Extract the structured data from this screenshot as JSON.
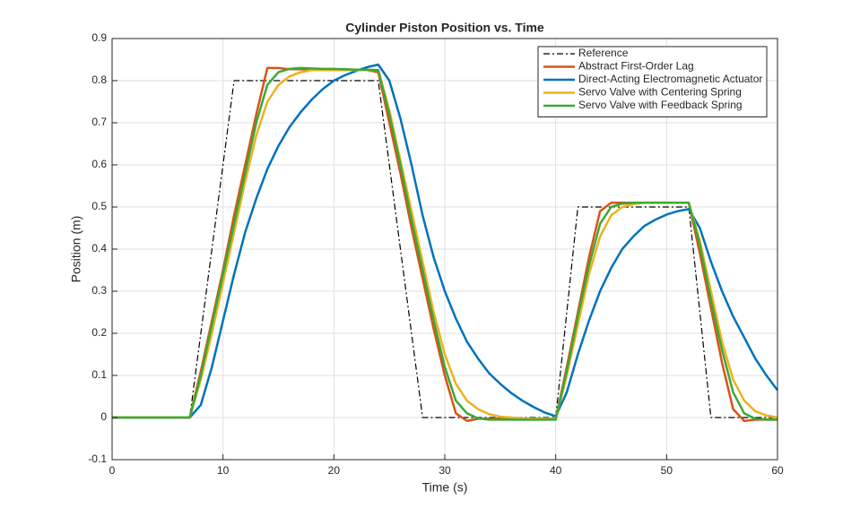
{
  "chart_data": {
    "type": "line",
    "title": "Cylinder Piston Position vs. Time",
    "x_label": "Time (s)",
    "y_label": "Position (m)",
    "x": [
      0,
      1,
      2,
      3,
      4,
      5,
      6,
      7,
      8,
      9,
      10,
      11,
      12,
      13,
      14,
      15,
      16,
      17,
      18,
      19,
      20,
      21,
      22,
      23,
      24,
      25,
      26,
      27,
      28,
      29,
      30,
      31,
      32,
      33,
      34,
      35,
      36,
      37,
      38,
      39,
      40,
      41,
      42,
      43,
      44,
      45,
      46,
      47,
      48,
      49,
      50,
      51,
      52,
      53,
      54,
      55,
      56,
      57,
      58,
      59,
      60
    ],
    "series": [
      {
        "name": "Reference",
        "color": "#000000",
        "linestyle": "dashdot",
        "values": [
          0,
          0,
          0,
          0,
          0,
          0,
          0,
          0,
          0.2,
          0.4,
          0.6,
          0.8,
          0.8,
          0.8,
          0.8,
          0.8,
          0.8,
          0.8,
          0.8,
          0.8,
          0.8,
          0.8,
          0.8,
          0.8,
          0.8,
          0.6,
          0.4,
          0.2,
          0,
          0,
          0,
          0,
          0,
          0,
          0,
          0,
          0,
          0,
          0,
          0,
          0,
          0.25,
          0.5,
          0.5,
          0.5,
          0.5,
          0.5,
          0.5,
          0.5,
          0.5,
          0.5,
          0.5,
          0.5,
          0.25,
          0,
          0,
          0,
          0,
          0,
          0,
          0
        ]
      },
      {
        "name": "Abstract First-Order Lag",
        "color": "#d95319",
        "linestyle": "solid",
        "values": [
          0,
          0,
          0,
          0,
          0,
          0,
          0,
          0,
          0.11,
          0.23,
          0.35,
          0.48,
          0.6,
          0.72,
          0.83,
          0.83,
          0.827,
          0.827,
          0.826,
          0.826,
          0.826,
          0.825,
          0.825,
          0.825,
          0.82,
          0.7,
          0.58,
          0.45,
          0.33,
          0.21,
          0.1,
          0.01,
          -0.008,
          -0.003,
          -0.003,
          -0.003,
          -0.003,
          -0.003,
          -0.003,
          -0.003,
          -0.003,
          0.12,
          0.25,
          0.38,
          0.49,
          0.51,
          0.51,
          0.51,
          0.51,
          0.51,
          0.51,
          0.51,
          0.51,
          0.39,
          0.26,
          0.13,
          0.02,
          -0.008,
          -0.005,
          -0.005,
          -0.005
        ]
      },
      {
        "name": "Direct-Acting Electromagnetic Actuator",
        "color": "#0072bd",
        "linestyle": "solid",
        "values": [
          0,
          0,
          0,
          0,
          0,
          0,
          0,
          0,
          0.03,
          0.12,
          0.23,
          0.34,
          0.44,
          0.52,
          0.59,
          0.645,
          0.69,
          0.725,
          0.755,
          0.78,
          0.8,
          0.813,
          0.823,
          0.832,
          0.838,
          0.8,
          0.71,
          0.6,
          0.48,
          0.38,
          0.3,
          0.235,
          0.18,
          0.14,
          0.105,
          0.08,
          0.058,
          0.04,
          0.025,
          0.012,
          0.003,
          0.06,
          0.15,
          0.23,
          0.3,
          0.355,
          0.4,
          0.43,
          0.455,
          0.47,
          0.482,
          0.49,
          0.495,
          0.45,
          0.37,
          0.3,
          0.24,
          0.19,
          0.14,
          0.1,
          0.065
        ]
      },
      {
        "name": "Servo Valve with Centering Spring",
        "color": "#edb120",
        "linestyle": "solid",
        "values": [
          0,
          0,
          0,
          0,
          0,
          0,
          0,
          0,
          0.09,
          0.2,
          0.32,
          0.44,
          0.56,
          0.67,
          0.75,
          0.79,
          0.81,
          0.82,
          0.825,
          0.825,
          0.825,
          0.825,
          0.825,
          0.825,
          0.825,
          0.73,
          0.61,
          0.49,
          0.37,
          0.25,
          0.15,
          0.08,
          0.04,
          0.02,
          0.008,
          0.002,
          0,
          -0.002,
          -0.003,
          -0.003,
          -0.003,
          0.1,
          0.22,
          0.34,
          0.43,
          0.48,
          0.5,
          0.507,
          0.51,
          0.51,
          0.51,
          0.51,
          0.51,
          0.42,
          0.3,
          0.18,
          0.09,
          0.04,
          0.015,
          0.005,
          0
        ]
      },
      {
        "name": "Servo Valve with Feedback Spring",
        "color": "#3aaa35",
        "linestyle": "solid",
        "values": [
          0,
          0,
          0,
          0,
          0,
          0,
          0,
          0,
          0.1,
          0.22,
          0.34,
          0.46,
          0.58,
          0.7,
          0.79,
          0.82,
          0.828,
          0.83,
          0.829,
          0.828,
          0.828,
          0.827,
          0.826,
          0.826,
          0.825,
          0.72,
          0.6,
          0.47,
          0.35,
          0.23,
          0.12,
          0.04,
          0.01,
          -0.002,
          -0.005,
          -0.005,
          -0.005,
          -0.005,
          -0.005,
          -0.005,
          -0.005,
          0.11,
          0.24,
          0.36,
          0.46,
          0.5,
          0.508,
          0.51,
          0.51,
          0.51,
          0.51,
          0.51,
          0.51,
          0.41,
          0.28,
          0.16,
          0.06,
          0.01,
          -0.003,
          -0.005,
          -0.005
        ]
      }
    ],
    "xlim": [
      0,
      60
    ],
    "xticks": [
      0,
      10,
      20,
      30,
      40,
      50,
      60
    ],
    "ylim": [
      -0.1,
      0.9
    ],
    "yticks": [
      -0.1,
      0,
      0.1,
      0.2,
      0.3,
      0.4,
      0.5,
      0.6,
      0.7,
      0.8,
      0.9
    ],
    "grid": true,
    "legend": "upper right"
  }
}
